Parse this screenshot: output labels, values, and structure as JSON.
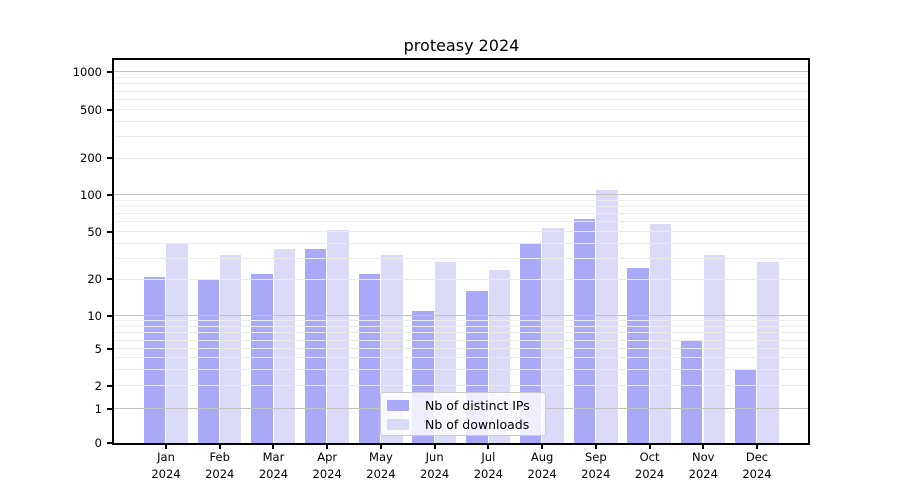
{
  "chart_data": {
    "type": "bar",
    "title": "proteasy 2024",
    "categories": [
      {
        "month": "Jan",
        "year": "2024"
      },
      {
        "month": "Feb",
        "year": "2024"
      },
      {
        "month": "Mar",
        "year": "2024"
      },
      {
        "month": "Apr",
        "year": "2024"
      },
      {
        "month": "May",
        "year": "2024"
      },
      {
        "month": "Jun",
        "year": "2024"
      },
      {
        "month": "Jul",
        "year": "2024"
      },
      {
        "month": "Aug",
        "year": "2024"
      },
      {
        "month": "Sep",
        "year": "2024"
      },
      {
        "month": "Oct",
        "year": "2024"
      },
      {
        "month": "Nov",
        "year": "2024"
      },
      {
        "month": "Dec",
        "year": "2024"
      }
    ],
    "series": [
      {
        "key": "distinct-ips",
        "name": "Nb of distinct IPs",
        "color": "#a9a9f7",
        "values": [
          21,
          20,
          22,
          36,
          22,
          11,
          16,
          39,
          63,
          25,
          6,
          3
        ]
      },
      {
        "key": "downloads",
        "name": "Nb of downloads",
        "color": "#dbdbf9",
        "values": [
          39,
          32,
          36,
          52,
          32,
          28,
          24,
          54,
          110,
          58,
          32,
          28
        ]
      }
    ],
    "y_axis": {
      "scale": "symlog",
      "ticks": [
        0,
        1,
        2,
        5,
        10,
        20,
        50,
        100,
        200,
        500,
        1000
      ],
      "anchors": [
        [
          0,
          0.0
        ],
        [
          1,
          0.0895
        ],
        [
          2,
          0.1495
        ],
        [
          5,
          0.246
        ],
        [
          10,
          0.332
        ],
        [
          20,
          0.4278
        ],
        [
          50,
          0.552
        ],
        [
          100,
          0.6478
        ],
        [
          200,
          0.7435
        ],
        [
          500,
          0.8696
        ],
        [
          1000,
          0.9695
        ]
      ],
      "major_gridlines": [
        1,
        10,
        100,
        1000
      ],
      "minor_gridlines": [
        2,
        3,
        4,
        5,
        6,
        7,
        8,
        9,
        20,
        30,
        40,
        50,
        60,
        70,
        80,
        90,
        200,
        300,
        400,
        500,
        600,
        700,
        800,
        900
      ]
    },
    "legend": {
      "position": "lower-center"
    },
    "colors": {
      "major_grid": "#c3c3c3",
      "minor_grid": "#ebebeb",
      "spine": "#000000",
      "background": "#ffffff"
    },
    "grid": "on"
  }
}
